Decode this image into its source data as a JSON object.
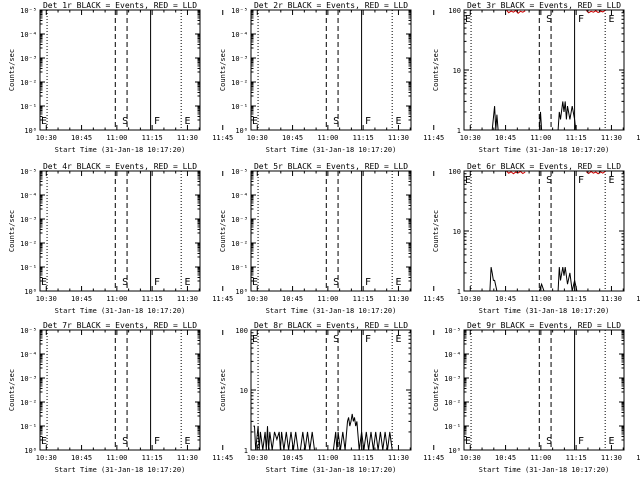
{
  "chart_data": [
    {
      "type": "line",
      "title": "Det 1r BLACK = Events, RED = LLD",
      "ylabel": "Counts/sec",
      "xlabel": "Start Time (31-Jan-18 10:17:20)",
      "yscale": "log",
      "ylim": [
        1,
        1000000
      ],
      "ytick_labels": [
        "10⁰",
        "10⁻¹",
        "10⁻²",
        "10⁻³",
        "10⁻⁴",
        "10⁻⁵"
      ],
      "xtick_labels": [
        "10:30",
        "10:45",
        "11:00",
        "11:15",
        "11:30",
        "11:45"
      ],
      "xlim_minutes": [
        10.0,
        78.0
      ],
      "markers": {
        "dotted": [
          13.0,
          70.0
        ],
        "dashed": [
          42.0,
          47.0
        ],
        "solid": [
          57.0
        ],
        "letters": [
          {
            "label": "E",
            "x": 10.0
          },
          {
            "label": "S",
            "x": 44.5
          },
          {
            "label": "F",
            "x": 58.0
          },
          {
            "label": "E",
            "x": 71.0
          }
        ]
      },
      "series": []
    },
    {
      "type": "line",
      "title": "Det 2r BLACK = Events, RED = LLD",
      "ylabel": "Counts/sec",
      "xlabel": "Start Time (31-Jan-18 10:17:20)",
      "yscale": "log",
      "ylim": [
        1,
        1000000
      ],
      "ytick_labels": [
        "10⁰",
        "10⁻¹",
        "10⁻²",
        "10⁻³",
        "10⁻⁴",
        "10⁻⁵"
      ],
      "xtick_labels": [
        "10:30",
        "10:45",
        "11:00",
        "11:15",
        "11:30",
        "11:45"
      ],
      "xlim_minutes": [
        10.0,
        78.0
      ],
      "markers": {
        "dotted": [
          13.0,
          70.0
        ],
        "dashed": [
          42.0,
          47.0
        ],
        "solid": [
          57.0
        ],
        "letters": [
          {
            "label": "E",
            "x": 10.0
          },
          {
            "label": "S",
            "x": 44.5
          },
          {
            "label": "F",
            "x": 58.0
          },
          {
            "label": "E",
            "x": 71.0
          }
        ]
      },
      "series": []
    },
    {
      "type": "line",
      "title": "Det 3r BLACK = Events, RED = LLD",
      "ylabel": "Counts/sec",
      "xlabel": "Start Time (31-Jan-18 10:17:20)",
      "yscale": "log",
      "ylim": [
        1,
        100
      ],
      "ytick_labels": [
        "1",
        "10",
        "100"
      ],
      "xtick_labels": [
        "10:30",
        "10:45",
        "11:00",
        "11:15",
        "11:30",
        "11:45"
      ],
      "xlim_minutes": [
        10.0,
        78.0
      ],
      "markers": {
        "dotted": [
          13.0,
          70.0
        ],
        "dashed": [
          42.0,
          47.0
        ],
        "solid": [
          57.0
        ],
        "letters": [
          {
            "label": "E",
            "x": 10.0
          },
          {
            "label": "S",
            "x": 44.5
          },
          {
            "label": "F",
            "x": 58.0
          },
          {
            "label": "E",
            "x": 71.0
          }
        ]
      },
      "series": [
        {
          "color": "#000000",
          "points": [
            [
              12.0,
              1.0
            ],
            [
              22.0,
              1.0
            ],
            [
              23.0,
              2.5
            ],
            [
              23.5,
              1.0
            ],
            [
              24.0,
              1.8
            ],
            [
              24.5,
              1.0
            ],
            [
              42.0,
              1.0
            ],
            [
              42.5,
              2.0
            ],
            [
              43.0,
              1.0
            ],
            [
              50.0,
              1.0
            ],
            [
              50.5,
              2.0
            ],
            [
              51.0,
              1.5
            ],
            [
              52.0,
              3.0
            ],
            [
              52.5,
              2.0
            ],
            [
              53.0,
              3.0
            ],
            [
              53.5,
              1.5
            ],
            [
              54.0,
              2.5
            ],
            [
              55.0,
              1.5
            ],
            [
              56.0,
              2.5
            ],
            [
              57.0,
              1.5
            ],
            [
              57.5,
              1.0
            ],
            [
              62.0,
              1.0
            ]
          ]
        },
        {
          "color": "#cc0000",
          "points": [
            [
              28.0,
              100
            ],
            [
              29.0,
              90
            ],
            [
              30.0,
              96
            ],
            [
              31.0,
              92
            ],
            [
              32.0,
              98
            ],
            [
              33.0,
              88
            ],
            [
              34.0,
              95
            ],
            [
              35.0,
              92
            ],
            [
              36.0,
              97
            ]
          ]
        },
        {
          "color": "#cc0000",
          "points": [
            [
              62.0,
              98
            ],
            [
              63.0,
              90
            ],
            [
              64.0,
              95
            ],
            [
              65.0,
              92
            ],
            [
              66.0,
              97
            ],
            [
              67.0,
              91
            ],
            [
              68.0,
              96
            ],
            [
              69.0,
              93
            ],
            [
              70.0,
              98
            ]
          ]
        }
      ]
    },
    {
      "type": "line",
      "title": "Det 4r BLACK = Events, RED = LLD",
      "ylabel": "Counts/sec",
      "xlabel": "Start Time (31-Jan-18 10:17:20)",
      "yscale": "log",
      "ylim": [
        1,
        1000000
      ],
      "ytick_labels": [
        "10⁰",
        "10⁻¹",
        "10⁻²",
        "10⁻³",
        "10⁻⁴",
        "10⁻⁵"
      ],
      "xtick_labels": [
        "10:30",
        "10:45",
        "11:00",
        "11:15",
        "11:30",
        "11:45"
      ],
      "xlim_minutes": [
        10.0,
        78.0
      ],
      "markers": {
        "dotted": [
          13.0,
          70.0
        ],
        "dashed": [
          42.0,
          47.0
        ],
        "solid": [
          57.0
        ],
        "letters": [
          {
            "label": "E",
            "x": 10.0
          },
          {
            "label": "S",
            "x": 44.5
          },
          {
            "label": "F",
            "x": 58.0
          },
          {
            "label": "E",
            "x": 71.0
          }
        ]
      },
      "series": []
    },
    {
      "type": "line",
      "title": "Det 5r BLACK = Events, RED = LLD",
      "ylabel": "Counts/sec",
      "xlabel": "Start Time (31-Jan-18 10:17:20)",
      "yscale": "log",
      "ylim": [
        1,
        1000000
      ],
      "ytick_labels": [
        "10⁰",
        "10⁻¹",
        "10⁻²",
        "10⁻³",
        "10⁻⁴",
        "10⁻⁵"
      ],
      "xtick_labels": [
        "10:30",
        "10:45",
        "11:00",
        "11:15",
        "11:30",
        "11:45"
      ],
      "xlim_minutes": [
        10.0,
        78.0
      ],
      "markers": {
        "dotted": [
          13.0,
          70.0
        ],
        "dashed": [
          42.0,
          47.0
        ],
        "solid": [
          57.0
        ],
        "letters": [
          {
            "label": "E",
            "x": 10.0
          },
          {
            "label": "S",
            "x": 44.5
          },
          {
            "label": "F",
            "x": 58.0
          },
          {
            "label": "E",
            "x": 71.0
          }
        ]
      },
      "series": []
    },
    {
      "type": "line",
      "title": "Det 6r BLACK = Events, RED = LLD",
      "ylabel": "Counts/sec",
      "xlabel": "Start Time (31-Jan-18 10:17:20)",
      "yscale": "log",
      "ylim": [
        1,
        100
      ],
      "ytick_labels": [
        "1",
        "10",
        "100"
      ],
      "xtick_labels": [
        "10:30",
        "10:45",
        "11:00",
        "11:15",
        "11:30",
        "11:45"
      ],
      "xlim_minutes": [
        10.0,
        78.0
      ],
      "markers": {
        "dotted": [
          13.0,
          70.0
        ],
        "dashed": [
          42.0,
          47.0
        ],
        "solid": [
          57.0
        ],
        "letters": [
          {
            "label": "E",
            "x": 10.0
          },
          {
            "label": "S",
            "x": 44.5
          },
          {
            "label": "F",
            "x": 58.0
          },
          {
            "label": "E",
            "x": 71.0
          }
        ]
      },
      "series": [
        {
          "color": "#000000",
          "points": [
            [
              12.0,
              1.0
            ],
            [
              21.0,
              1.0
            ],
            [
              21.5,
              2.5
            ],
            [
              22.0,
              2.0
            ],
            [
              22.5,
              1.5
            ],
            [
              23.0,
              1.5
            ],
            [
              24.0,
              1.0
            ],
            [
              42.0,
              1.0
            ],
            [
              43.0,
              1.3
            ],
            [
              44.0,
              1.0
            ],
            [
              50.0,
              1.0
            ],
            [
              50.5,
              2.5
            ],
            [
              51.0,
              1.5
            ],
            [
              52.0,
              2.5
            ],
            [
              52.5,
              1.8
            ],
            [
              53.0,
              2.5
            ],
            [
              54.0,
              1.3
            ],
            [
              55.0,
              2.0
            ],
            [
              56.0,
              1.0
            ],
            [
              57.0,
              1.5
            ],
            [
              58.0,
              1.0
            ],
            [
              62.0,
              1.0
            ]
          ]
        },
        {
          "color": "#cc0000",
          "points": [
            [
              28.0,
              100
            ],
            [
              29.0,
              92
            ],
            [
              30.0,
              97
            ],
            [
              31.0,
              90
            ],
            [
              32.0,
              96
            ],
            [
              33.0,
              93
            ],
            [
              34.0,
              98
            ],
            [
              35.0,
              91
            ],
            [
              36.0,
              96
            ]
          ]
        },
        {
          "color": "#cc0000",
          "points": [
            [
              62.0,
              97
            ],
            [
              63.0,
              91
            ],
            [
              64.0,
              98
            ],
            [
              65.0,
              92
            ],
            [
              66.0,
              96
            ],
            [
              67.0,
              90
            ],
            [
              68.0,
              97
            ],
            [
              69.0,
              92
            ],
            [
              70.0,
              98
            ]
          ]
        }
      ]
    },
    {
      "type": "line",
      "title": "Det 7r BLACK = Events, RED = LLD",
      "ylabel": "Counts/sec",
      "xlabel": "Start Time (31-Jan-18 10:17:20)",
      "yscale": "log",
      "ylim": [
        1,
        1000000
      ],
      "ytick_labels": [
        "10⁰",
        "10⁻¹",
        "10⁻²",
        "10⁻³",
        "10⁻⁴",
        "10⁻⁵"
      ],
      "xtick_labels": [
        "10:30",
        "10:45",
        "11:00",
        "11:15",
        "11:30",
        "11:45"
      ],
      "xlim_minutes": [
        10.0,
        78.0
      ],
      "markers": {
        "dotted": [
          13.0,
          70.0
        ],
        "dashed": [
          42.0,
          47.0
        ],
        "solid": [
          57.0
        ],
        "letters": [
          {
            "label": "E",
            "x": 10.0
          },
          {
            "label": "S",
            "x": 44.5
          },
          {
            "label": "F",
            "x": 58.0
          },
          {
            "label": "E",
            "x": 71.0
          }
        ]
      },
      "series": []
    },
    {
      "type": "line",
      "title": "Det 8r BLACK = Events, RED = LLD",
      "ylabel": "Counts/sec",
      "xlabel": "Start Time (31-Jan-18 10:17:20)",
      "yscale": "log",
      "ylim": [
        1,
        100
      ],
      "ytick_labels": [
        "1",
        "10",
        "100"
      ],
      "xtick_labels": [
        "10:30",
        "10:45",
        "11:00",
        "11:15",
        "11:30",
        "11:45"
      ],
      "xlim_minutes": [
        10.0,
        78.0
      ],
      "markers": {
        "dotted": [
          13.0,
          70.0
        ],
        "dashed": [
          42.0,
          47.0
        ],
        "solid": [
          57.0
        ],
        "letters": [
          {
            "label": "E",
            "x": 10.0
          },
          {
            "label": "S",
            "x": 44.5
          },
          {
            "label": "F",
            "x": 58.0
          },
          {
            "label": "E",
            "x": 71.0
          }
        ]
      },
      "series": [
        {
          "color": "#000000",
          "points": [
            [
              11.0,
              2.5
            ],
            [
              11.5,
              2.5
            ],
            [
              12.0,
              1.0
            ],
            [
              13.0,
              2.5
            ],
            [
              13.5,
              1.0
            ],
            [
              14.0,
              2.0
            ],
            [
              15.0,
              1.0
            ],
            [
              16.0,
              2.0
            ],
            [
              16.5,
              1.0
            ],
            [
              17.0,
              2.5
            ],
            [
              17.5,
              1.0
            ],
            [
              18.0,
              2.0
            ],
            [
              19.0,
              1.0
            ],
            [
              20.0,
              2.0
            ],
            [
              21.0,
              1.5
            ],
            [
              22.0,
              2.0
            ],
            [
              22.5,
              1.0
            ],
            [
              23.0,
              2.0
            ],
            [
              24.0,
              1.0
            ],
            [
              25.0,
              2.0
            ],
            [
              26.0,
              1.0
            ],
            [
              27.0,
              2.0
            ],
            [
              28.0,
              1.0
            ],
            [
              29.0,
              2.0
            ],
            [
              30.0,
              1.0
            ],
            [
              31.0,
              1.0
            ],
            [
              32.0,
              2.0
            ],
            [
              33.0,
              1.0
            ],
            [
              34.0,
              2.0
            ],
            [
              35.0,
              1.0
            ],
            [
              36.0,
              2.0
            ],
            [
              37.0,
              1.0
            ],
            [
              45.0,
              1.0
            ],
            [
              46.0,
              2.0
            ],
            [
              46.5,
              1.0
            ],
            [
              47.0,
              2.0
            ],
            [
              48.0,
              1.0
            ],
            [
              49.0,
              2.0
            ],
            [
              50.0,
              1.0
            ],
            [
              51.0,
              3.0
            ],
            [
              51.5,
              3.5
            ],
            [
              52.0,
              2.5
            ],
            [
              52.5,
              3.0
            ],
            [
              53.0,
              4.0
            ],
            [
              53.5,
              3.0
            ],
            [
              54.0,
              3.5
            ],
            [
              54.5,
              2.5
            ],
            [
              55.0,
              3.0
            ],
            [
              56.0,
              1.0
            ],
            [
              57.0,
              2.0
            ],
            [
              58.0,
              1.0
            ],
            [
              59.0,
              2.0
            ],
            [
              60.0,
              1.0
            ],
            [
              61.0,
              2.0
            ],
            [
              62.0,
              1.0
            ],
            [
              63.0,
              2.0
            ],
            [
              64.0,
              1.0
            ],
            [
              65.0,
              2.0
            ],
            [
              66.0,
              1.0
            ],
            [
              67.0,
              2.0
            ],
            [
              68.0,
              1.0
            ],
            [
              69.0,
              2.0
            ],
            [
              70.0,
              1.0
            ]
          ]
        }
      ]
    },
    {
      "type": "line",
      "title": "Det 9r BLACK = Events, RED = LLD",
      "ylabel": "Counts/sec",
      "xlabel": "Start Time (31-Jan-18 10:17:20)",
      "yscale": "log",
      "ylim": [
        1,
        1000000
      ],
      "ytick_labels": [
        "10⁰",
        "10⁻¹",
        "10⁻²",
        "10⁻³",
        "10⁻⁴",
        "10⁻⁵"
      ],
      "xtick_labels": [
        "10:30",
        "10:45",
        "11:00",
        "11:15",
        "11:30",
        "11:45"
      ],
      "xlim_minutes": [
        10.0,
        78.0
      ],
      "markers": {
        "dotted": [
          13.0,
          70.0
        ],
        "dashed": [
          42.0,
          47.0
        ],
        "solid": [
          57.0
        ],
        "letters": [
          {
            "label": "E",
            "x": 10.0
          },
          {
            "label": "S",
            "x": 44.5
          },
          {
            "label": "F",
            "x": 58.0
          },
          {
            "label": "E",
            "x": 71.0
          }
        ]
      },
      "series": []
    }
  ]
}
